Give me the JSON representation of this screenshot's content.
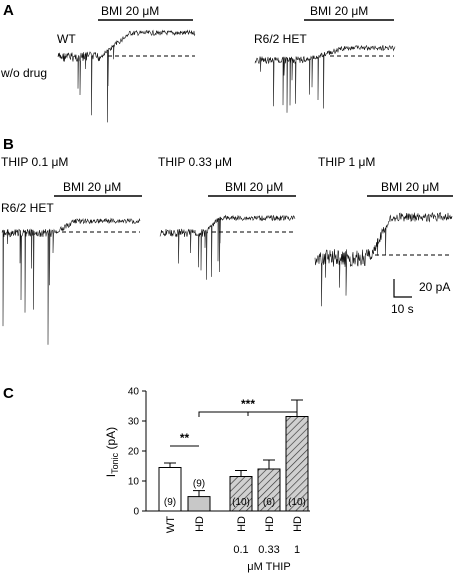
{
  "panels": {
    "A": {
      "letter": "A",
      "row_label": "w/o drug",
      "traces": [
        {
          "label": "WT",
          "drug": "BMI 20 μM"
        },
        {
          "label": "R6/2 HET",
          "drug": "BMI 20 μM"
        }
      ]
    },
    "B": {
      "letter": "B",
      "genotype_label": "R6/2 HET",
      "traces": [
        {
          "label": "THIP 0.1 μM",
          "drug": "BMI 20 μM"
        },
        {
          "label": "THIP 0.33 μM",
          "drug": "BMI 20 μM"
        },
        {
          "label": "THIP 1 μM",
          "drug": "BMI 20 μM"
        }
      ],
      "scale_bar": {
        "current": "20 pA",
        "time": "10 s"
      }
    },
    "C": {
      "letter": "C"
    }
  },
  "chart_data": {
    "type": "bar",
    "ylabel_main": "I",
    "ylabel_sub": "Tonic",
    "ylabel_unit": " (pA)",
    "ylim": [
      0,
      40
    ],
    "yticks": [
      "0",
      "10",
      "20",
      "30",
      "40"
    ],
    "categories": [
      "WT",
      "HD",
      "HD",
      "HD",
      "HD"
    ],
    "values": [
      14.5,
      4.8,
      11.5,
      14.0,
      31.5
    ],
    "errors": [
      1.5,
      2.0,
      2.0,
      3.0,
      5.5
    ],
    "n_labels": [
      "(9)",
      "(9)",
      "(10)",
      "(6)",
      "(10)"
    ],
    "fills": [
      "#ffffff",
      "#c8c8c8",
      "hatch",
      "hatch",
      "hatch"
    ],
    "thip_values": [
      "0.1",
      "0.33",
      "1"
    ],
    "thip_label": "μM THIP",
    "significance": [
      {
        "label": "**",
        "between": [
          0,
          1
        ]
      },
      {
        "label": "***",
        "between": [
          1,
          4
        ]
      }
    ]
  }
}
